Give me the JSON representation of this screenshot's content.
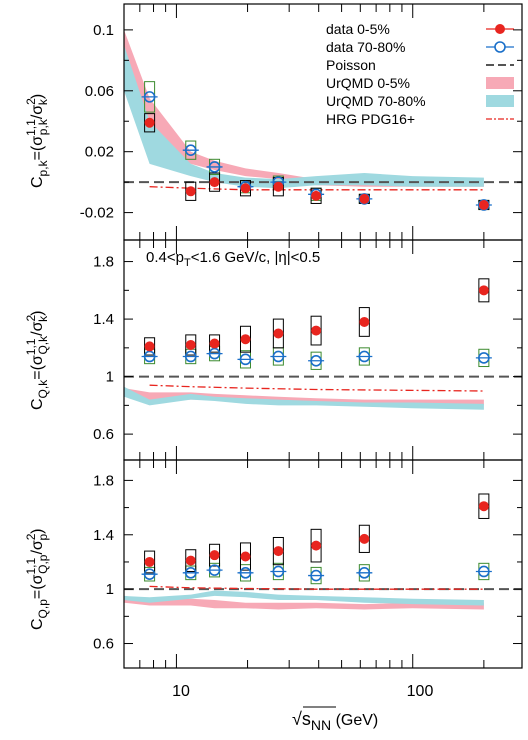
{
  "figure": {
    "xlabel_main": "√s",
    "xlabel_sub": "NN",
    "xlabel_unit": " (GeV)",
    "x_ticks": [
      "10",
      "100"
    ]
  },
  "legend": {
    "items": [
      {
        "label": "data 0-5%",
        "kind": "marker-filled",
        "color": "#e8251f"
      },
      {
        "label": "data 70-80%",
        "kind": "marker-open",
        "color": "#1a6fc9"
      },
      {
        "label": "Poisson",
        "kind": "dashed",
        "color": "#555555"
      },
      {
        "label": "UrQMD 0-5%",
        "kind": "band",
        "color": "#f7a9b6"
      },
      {
        "label": "UrQMD 70-80%",
        "kind": "band",
        "color": "#9fd9e0"
      },
      {
        "label": "HRG PDG16+",
        "kind": "dashdot",
        "color": "#e8251f"
      }
    ]
  },
  "annotation": {
    "kinematics": "0.4<p",
    "kinematics_sub": "T",
    "kinematics_rest": "<1.6 GeV/c, |η|<0.5"
  },
  "colors": {
    "central": "#e8251f",
    "peripheral": "#1a6fc9",
    "sys_central": "#000000",
    "sys_peripheral": "#3b8a2e",
    "urqmd_central": "#f7a9b6",
    "urqmd_peripheral": "#9fd9e0",
    "poisson": "#555555",
    "hrg": "#e8251f"
  },
  "chart_data": [
    {
      "type": "scatter",
      "panel": "p,k",
      "ylabel_prefix": "C",
      "ylabel_sub": "p,k",
      "ylabel_mid": "=(σ",
      "ylabel_sup2": "1,1",
      "ylabel_sub2": "p,k",
      "ylabel_mid2": "/σ",
      "ylabel_sup3": "2",
      "ylabel_sub3": "k",
      "ylabel_end": ")",
      "ylim": [
        -0.038,
        0.117
      ],
      "y_ticks": [
        -0.02,
        0.02,
        0.06,
        0.1
      ],
      "y_tick_labels": [
        "-0.02",
        "0.02",
        "0.06",
        "0.1"
      ],
      "xlim": [
        6,
        290
      ],
      "x": [
        7.7,
        11.5,
        14.5,
        19.6,
        27,
        39,
        62.4,
        200
      ],
      "series": [
        {
          "name": "data 0-5%",
          "values": [
            0.039,
            -0.006,
            0.0,
            -0.004,
            -0.003,
            -0.009,
            -0.011,
            -0.015
          ],
          "sys": [
            0.006,
            0.006,
            0.006,
            0.005,
            0.006,
            0.005,
            0.003,
            0.003
          ]
        },
        {
          "name": "data 70-80%",
          "values": [
            0.056,
            0.021,
            0.01,
            -0.003,
            0.0,
            -0.008,
            -0.011,
            -0.015
          ],
          "sys": [
            0.01,
            0.006,
            0.005,
            0.004,
            0.004,
            0.004,
            0.003,
            0.003
          ]
        }
      ],
      "urqmd_central": {
        "x": [
          6,
          7.7,
          11.5,
          14.5,
          19.6,
          27,
          39,
          62.4,
          100,
          200
        ],
        "lo": [
          0.07,
          0.03,
          0.012,
          0.008,
          0.004,
          0.002,
          -0.002,
          -0.003,
          -0.003,
          -0.003
        ],
        "hi": [
          0.1,
          0.055,
          0.02,
          0.014,
          0.009,
          0.006,
          0.002,
          0.001,
          0.001,
          0.0
        ]
      },
      "urqmd_peripheral": {
        "x": [
          6,
          7.7,
          11.5,
          14.5,
          19.6,
          27,
          39,
          62.4,
          100,
          200
        ],
        "lo": [
          0.06,
          0.012,
          0.004,
          0.0,
          -0.003,
          -0.004,
          -0.002,
          -0.002,
          -0.003,
          -0.003
        ],
        "hi": [
          0.09,
          0.04,
          0.012,
          0.006,
          0.003,
          0.002,
          0.004,
          0.006,
          0.004,
          0.003
        ]
      },
      "poisson": 0.0,
      "hrg": {
        "x": [
          7.7,
          11.5,
          19.6,
          39,
          200
        ],
        "y": [
          -0.003,
          -0.004,
          -0.005,
          -0.005,
          -0.005
        ]
      }
    },
    {
      "type": "scatter",
      "panel": "Q,k",
      "ylabel_prefix": "C",
      "ylabel_sub": "Q,k",
      "ylabel_mid": "=(σ",
      "ylabel_sup2": "1,1",
      "ylabel_sub2": "Q,k",
      "ylabel_mid2": "/σ",
      "ylabel_sup3": "2",
      "ylabel_sub3": "k",
      "ylabel_end": ")",
      "ylim": [
        0.42,
        1.95
      ],
      "y_ticks": [
        0.6,
        1.0,
        1.4,
        1.8
      ],
      "y_tick_labels": [
        "0.6",
        "1",
        "1.4",
        "1.8"
      ],
      "xlim": [
        6,
        290
      ],
      "x": [
        7.7,
        11.5,
        14.5,
        19.6,
        27,
        39,
        62.4,
        200
      ],
      "series": [
        {
          "name": "data 0-5%",
          "values": [
            1.21,
            1.22,
            1.23,
            1.26,
            1.3,
            1.32,
            1.38,
            1.6
          ],
          "sys": [
            0.06,
            0.07,
            0.06,
            0.09,
            0.1,
            0.1,
            0.1,
            0.08
          ]
        },
        {
          "name": "data 70-80%",
          "values": [
            1.14,
            1.14,
            1.16,
            1.12,
            1.14,
            1.11,
            1.14,
            1.13
          ],
          "sys": [
            0.05,
            0.05,
            0.05,
            0.06,
            0.06,
            0.06,
            0.06,
            0.06
          ]
        }
      ],
      "urqmd_central": {
        "x": [
          6,
          7.7,
          11.5,
          14.5,
          19.6,
          27,
          39,
          62.4,
          100,
          200
        ],
        "lo": [
          0.87,
          0.83,
          0.84,
          0.84,
          0.82,
          0.82,
          0.81,
          0.82,
          0.8,
          0.8
        ],
        "hi": [
          0.92,
          0.89,
          0.89,
          0.88,
          0.87,
          0.86,
          0.85,
          0.84,
          0.84,
          0.84
        ]
      },
      "urqmd_peripheral": {
        "x": [
          6,
          7.7,
          11.5,
          14.5,
          19.6,
          27,
          39,
          62.4,
          100,
          200
        ],
        "lo": [
          0.86,
          0.8,
          0.84,
          0.83,
          0.81,
          0.8,
          0.8,
          0.79,
          0.78,
          0.77
        ],
        "hi": [
          0.93,
          0.84,
          0.88,
          0.86,
          0.85,
          0.84,
          0.83,
          0.82,
          0.82,
          0.81
        ]
      },
      "poisson": 1.0,
      "hrg": {
        "x": [
          7.7,
          11.5,
          19.6,
          39,
          200
        ],
        "y": [
          0.94,
          0.93,
          0.92,
          0.91,
          0.9
        ]
      }
    },
    {
      "type": "scatter",
      "panel": "Q,p",
      "ylabel_prefix": "C",
      "ylabel_sub": "Q,p",
      "ylabel_mid": "=(σ",
      "ylabel_sup2": "1,1",
      "ylabel_sub2": "Q,p",
      "ylabel_mid2": "/σ",
      "ylabel_sup3": "2",
      "ylabel_sub3": "p",
      "ylabel_end": ")",
      "ylim": [
        0.42,
        1.95
      ],
      "y_ticks": [
        0.6,
        1.0,
        1.4,
        1.8
      ],
      "y_tick_labels": [
        "0.6",
        "1",
        "1.4",
        "1.8"
      ],
      "xlim": [
        6,
        290
      ],
      "x": [
        7.7,
        11.5,
        14.5,
        19.6,
        27,
        39,
        62.4,
        200
      ],
      "series": [
        {
          "name": "data 0-5%",
          "values": [
            1.2,
            1.21,
            1.25,
            1.24,
            1.28,
            1.32,
            1.37,
            1.61
          ],
          "sys": [
            0.08,
            0.08,
            0.08,
            0.1,
            0.1,
            0.12,
            0.1,
            0.09
          ]
        },
        {
          "name": "data 70-80%",
          "values": [
            1.11,
            1.12,
            1.14,
            1.12,
            1.13,
            1.1,
            1.12,
            1.13
          ],
          "sys": [
            0.05,
            0.05,
            0.05,
            0.06,
            0.06,
            0.06,
            0.06,
            0.06
          ]
        }
      ],
      "urqmd_central": {
        "x": [
          6,
          7.7,
          11.5,
          14.5,
          19.6,
          27,
          39,
          62.4,
          100,
          200
        ],
        "lo": [
          0.9,
          0.88,
          0.88,
          0.86,
          0.86,
          0.85,
          0.86,
          0.85,
          0.86,
          0.85
        ],
        "hi": [
          0.93,
          0.92,
          0.93,
          0.92,
          0.9,
          0.9,
          0.9,
          0.89,
          0.9,
          0.9
        ]
      },
      "urqmd_peripheral": {
        "x": [
          6,
          7.7,
          11.5,
          14.5,
          19.6,
          27,
          39,
          62.4,
          100,
          200
        ],
        "lo": [
          0.92,
          0.9,
          0.93,
          0.95,
          0.94,
          0.92,
          0.92,
          0.9,
          0.89,
          0.88
        ],
        "hi": [
          0.95,
          0.94,
          0.96,
          0.99,
          0.98,
          0.96,
          0.95,
          0.94,
          0.93,
          0.92
        ]
      },
      "poisson": 1.0,
      "hrg": {
        "x": [
          7.7,
          11.5,
          19.6,
          39,
          200
        ],
        "y": [
          1.02,
          1.01,
          1.005,
          1.0,
          1.0
        ]
      }
    }
  ]
}
